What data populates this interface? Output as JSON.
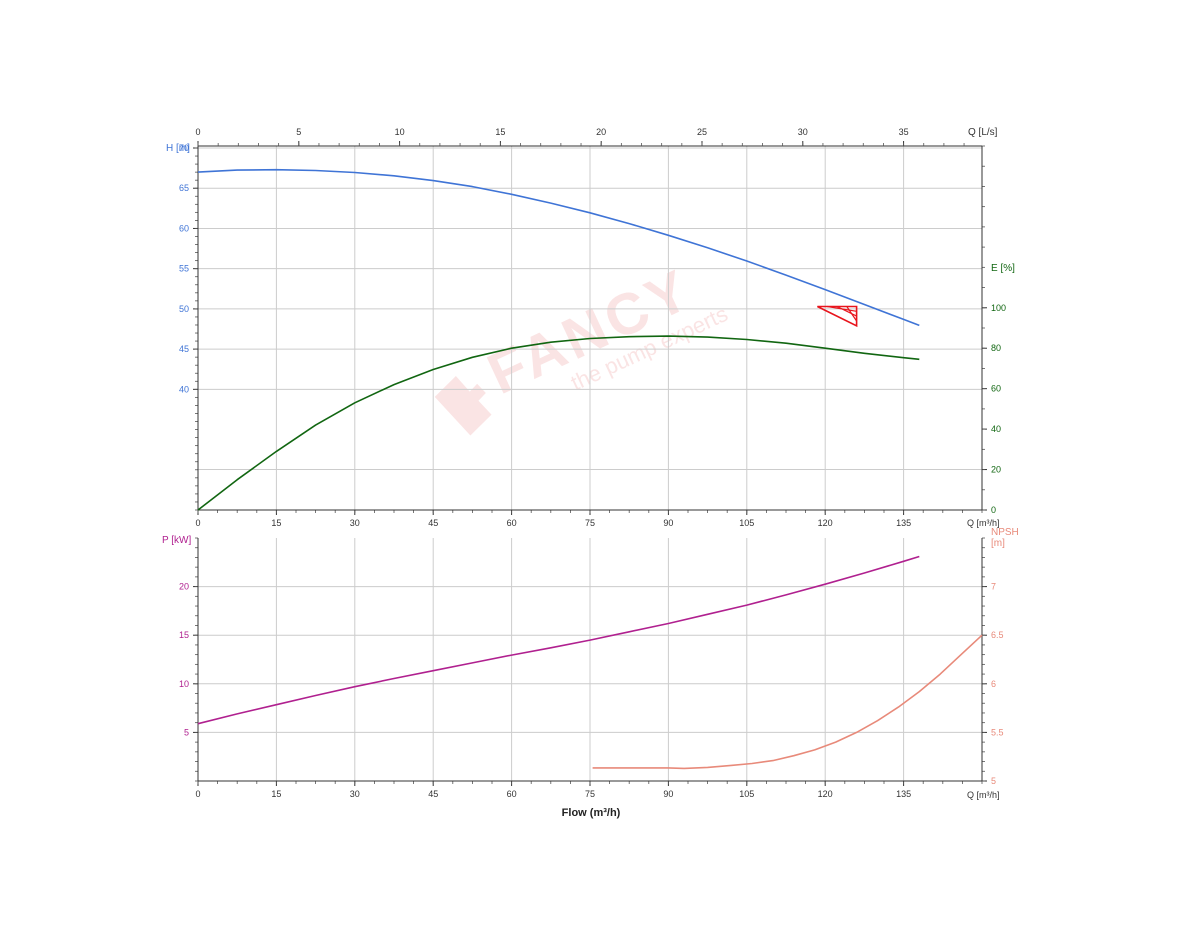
{
  "colors": {
    "head": "#3f74d6",
    "efficiency": "#116611",
    "power": "#b0208f",
    "npsh": "#e88a7a",
    "duty": "#e8141c",
    "axis_text": "#333333",
    "grid": "#cccccc",
    "watermark": "#f2b3b3"
  },
  "watermark": {
    "brand": "FANCY",
    "tagline": "the pump experts",
    "icon": "pump-logo-icon"
  },
  "chart_data": [
    {
      "id": "upper",
      "type": "line",
      "top_axis": {
        "label": "Q [L/s]",
        "ticks": [
          0,
          5,
          10,
          15,
          20,
          25,
          30,
          35
        ],
        "range": [
          0,
          38.89
        ]
      },
      "x_axis": {
        "label": "Q [m³/h]",
        "ticks": [
          0,
          15,
          30,
          45,
          60,
          75,
          90,
          105,
          120,
          135
        ],
        "range": [
          0,
          150
        ]
      },
      "left_axis": {
        "label": "H [m]",
        "ticks": [
          40,
          45,
          50,
          55,
          60,
          65,
          70
        ],
        "range": [
          25,
          70.25
        ]
      },
      "right_axis": {
        "label": "E [%]",
        "ticks": [
          0,
          20,
          40,
          60,
          80,
          100
        ],
        "range": [
          0,
          180
        ]
      },
      "grid": true,
      "series": [
        {
          "axis": "left",
          "color_key": "head",
          "points": [
            [
              0,
              67.0
            ],
            [
              7.5,
              67.25
            ],
            [
              15,
              67.3
            ],
            [
              22.5,
              67.2
            ],
            [
              30,
              66.95
            ],
            [
              37.5,
              66.55
            ],
            [
              45,
              65.95
            ],
            [
              52.5,
              65.2
            ],
            [
              60,
              64.25
            ],
            [
              67.5,
              63.15
            ],
            [
              75,
              61.95
            ],
            [
              82.5,
              60.6
            ],
            [
              90,
              59.15
            ],
            [
              97.5,
              57.6
            ],
            [
              105,
              55.95
            ],
            [
              112.5,
              54.2
            ],
            [
              120,
              52.4
            ],
            [
              127.5,
              50.55
            ],
            [
              135,
              48.7
            ],
            [
              138,
              47.95
            ]
          ]
        },
        {
          "axis": "right",
          "color_key": "efficiency",
          "points": [
            [
              0,
              0
            ],
            [
              7.5,
              15
            ],
            [
              15,
              29
            ],
            [
              22.5,
              42
            ],
            [
              30,
              53
            ],
            [
              37.5,
              62
            ],
            [
              45,
              69.5
            ],
            [
              52.5,
              75.5
            ],
            [
              60,
              80
            ],
            [
              67.5,
              83
            ],
            [
              75,
              84.8
            ],
            [
              82.5,
              85.7
            ],
            [
              90,
              86
            ],
            [
              97.5,
              85.5
            ],
            [
              105,
              84.3
            ],
            [
              112.5,
              82.5
            ],
            [
              120,
              80
            ],
            [
              127.5,
              77.5
            ],
            [
              135,
              75.3
            ],
            [
              138,
              74.5
            ]
          ]
        }
      ],
      "duty_point": {
        "corners": [
          [
            118.5,
            50.3
          ],
          [
            126,
            50.3
          ],
          [
            126,
            47.9
          ]
        ]
      }
    },
    {
      "id": "lower",
      "type": "line",
      "x_axis": {
        "label": "Q [m³/h]",
        "ticks": [
          0,
          15,
          30,
          45,
          60,
          75,
          90,
          105,
          120,
          135
        ],
        "range": [
          0,
          150
        ]
      },
      "left_axis": {
        "label": "P [kW]",
        "ticks": [
          5,
          10,
          15,
          20
        ],
        "range": [
          0,
          25
        ]
      },
      "right_axis": {
        "label": "NPSH [m]",
        "ticks": [
          5,
          5.5,
          6,
          6.5,
          7
        ],
        "range": [
          5,
          7.5
        ]
      },
      "xlabel": "Flow (m³/h)",
      "grid": true,
      "series": [
        {
          "axis": "left",
          "color_key": "power",
          "points": [
            [
              0,
              5.9
            ],
            [
              7.5,
              6.9
            ],
            [
              15,
              7.85
            ],
            [
              22.5,
              8.8
            ],
            [
              30,
              9.7
            ],
            [
              37.5,
              10.55
            ],
            [
              45,
              11.35
            ],
            [
              52.5,
              12.15
            ],
            [
              60,
              12.95
            ],
            [
              67.5,
              13.7
            ],
            [
              75,
              14.5
            ],
            [
              82.5,
              15.35
            ],
            [
              90,
              16.2
            ],
            [
              97.5,
              17.15
            ],
            [
              105,
              18.1
            ],
            [
              112.5,
              19.15
            ],
            [
              120,
              20.25
            ],
            [
              127.5,
              21.4
            ],
            [
              135,
              22.6
            ],
            [
              138,
              23.1
            ]
          ]
        },
        {
          "axis": "right",
          "color_key": "npsh",
          "points": [
            [
              75.5,
              5.135
            ],
            [
              82.5,
              5.135
            ],
            [
              90,
              5.135
            ],
            [
              93,
              5.13
            ],
            [
              97.5,
              5.14
            ],
            [
              102,
              5.16
            ],
            [
              106,
              5.18
            ],
            [
              110,
              5.21
            ],
            [
              114,
              5.26
            ],
            [
              118,
              5.32
            ],
            [
              122,
              5.4
            ],
            [
              126,
              5.5
            ],
            [
              130,
              5.62
            ],
            [
              134,
              5.76
            ],
            [
              138,
              5.92
            ],
            [
              142,
              6.1
            ],
            [
              146,
              6.3
            ],
            [
              150,
              6.5
            ]
          ]
        }
      ]
    }
  ]
}
